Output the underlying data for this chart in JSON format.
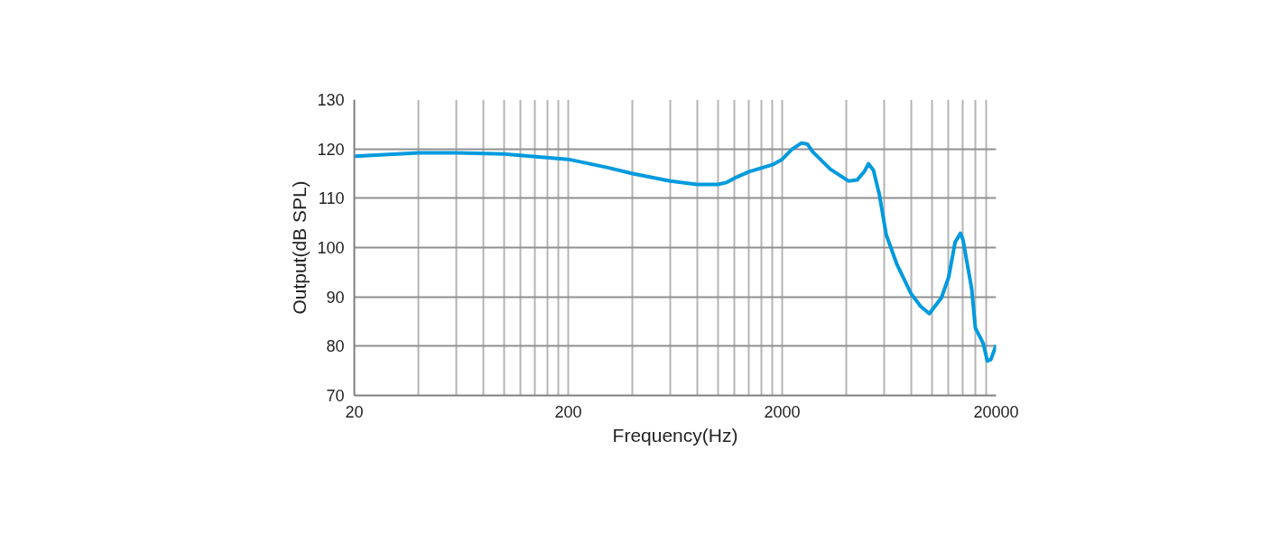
{
  "chart_data": {
    "type": "line",
    "xlabel": "Frequency(Hz)",
    "ylabel": "Output(dB SPL)",
    "log": "x",
    "grid": true,
    "marker": "none",
    "line_style": "solid",
    "xlim": [
      20,
      20000
    ],
    "ylim": [
      70,
      130
    ],
    "xticks": [
      20,
      {
        "value": 40,
        "label": null
      },
      {
        "value": 60,
        "label": null
      },
      {
        "value": 80,
        "label": null
      },
      {
        "value": 100,
        "label": null
      },
      {
        "value": 120,
        "label": null
      },
      {
        "value": 140,
        "label": null
      },
      {
        "value": 160,
        "label": null
      },
      {
        "value": 180,
        "label": null
      },
      200,
      {
        "value": 400,
        "label": null
      },
      {
        "value": 600,
        "label": null
      },
      {
        "value": 800,
        "label": null
      },
      {
        "value": 1000,
        "label": null
      },
      {
        "value": 1200,
        "label": null
      },
      {
        "value": 1400,
        "label": null
      },
      {
        "value": 1600,
        "label": null
      },
      {
        "value": 1800,
        "label": null
      },
      2000,
      {
        "value": 4000,
        "label": null
      },
      {
        "value": 6000,
        "label": null
      },
      {
        "value": 8000,
        "label": null
      },
      {
        "value": 10000,
        "label": null
      },
      {
        "value": 12000,
        "label": null
      },
      {
        "value": 14000,
        "label": null
      },
      {
        "value": 16000,
        "label": null
      },
      {
        "value": 18000,
        "label": null
      },
      20000
    ],
    "yticks": [
      70,
      80,
      90,
      100,
      110,
      120,
      130
    ],
    "series": [
      {
        "color": "#009ade",
        "x": [
          20,
          40,
          60,
          100,
          200,
          300,
          400,
          600,
          800,
          1000,
          1100,
          1200,
          1400,
          1800,
          2000,
          2220,
          2460,
          2620,
          2780,
          3360,
          4080,
          4480,
          4840,
          5060,
          5340,
          5690,
          6130,
          6860,
          8000,
          8860,
          9750,
          11100,
          12000,
          12870,
          13630,
          14000,
          15380,
          16000,
          17400,
          18200,
          18900,
          20000
        ],
        "values": [
          118.5,
          119.2,
          119.2,
          119.0,
          117.9,
          116.3,
          115.0,
          113.5,
          112.8,
          112.8,
          113.2,
          114.1,
          115.4,
          116.8,
          117.9,
          119.9,
          121.2,
          121.0,
          119.4,
          115.9,
          113.5,
          113.7,
          115.4,
          117.0,
          115.7,
          110.8,
          102.6,
          96.7,
          90.7,
          88.1,
          86.6,
          89.8,
          94.0,
          101.1,
          102.9,
          101.6,
          91.6,
          83.7,
          80.6,
          77.0,
          77.3,
          80.2
        ]
      }
    ]
  }
}
